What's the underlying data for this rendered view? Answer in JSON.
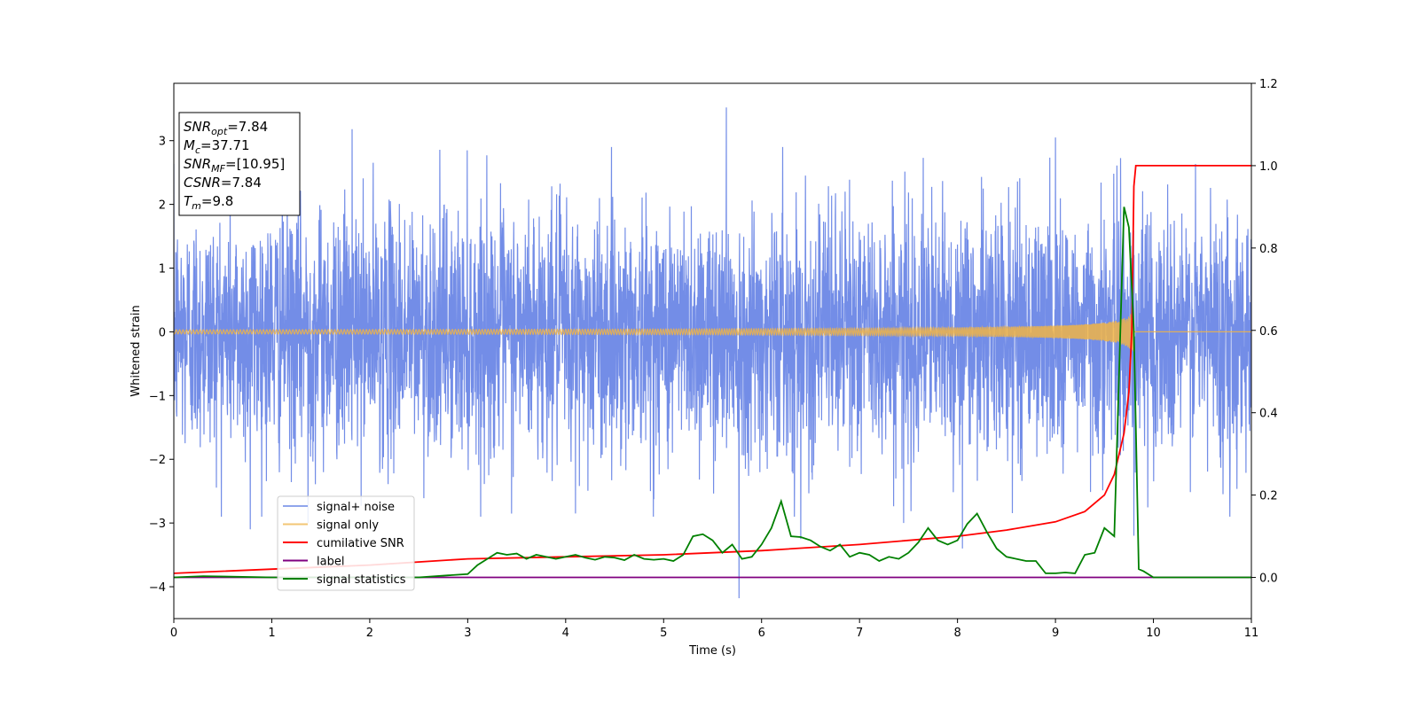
{
  "chart_data": {
    "type": "line",
    "xlabel": "Time (s)",
    "ylabel": "Whitened strain",
    "xlim": [
      0,
      11
    ],
    "ylim_left": [
      -4.5,
      3.9
    ],
    "ylim_right": [
      -0.1,
      1.2
    ],
    "x_ticks": [
      0,
      1,
      2,
      3,
      4,
      5,
      6,
      7,
      8,
      9,
      10,
      11
    ],
    "y_ticks_left": [
      -4,
      -3,
      -2,
      -1,
      0,
      1,
      2,
      3
    ],
    "y_ticks_right": [
      0.0,
      0.2,
      0.4,
      0.6,
      0.8,
      1.0,
      1.2
    ],
    "y_tick_labels_left": [
      "−4",
      "−3",
      "−2",
      "−1",
      "0",
      "1",
      "2",
      "3"
    ],
    "y_tick_labels_right": [
      "0.0",
      "0.2",
      "0.4",
      "0.6",
      "0.8",
      "1.0",
      "1.2"
    ],
    "grid": false,
    "legend_position": "lower-left",
    "series": [
      {
        "name": "signal+ noise",
        "axis": "left",
        "color": "#6b87e6",
        "description_points": "Gaussian noise with std ~0.95; peaks approx.",
        "notable_peaks": [
          [
            0.78,
            -3.1
          ],
          [
            1.37,
            -3.0
          ],
          [
            1.82,
            3.18
          ],
          [
            4.1,
            -2.85
          ],
          [
            5.64,
            3.52
          ],
          [
            5.77,
            -4.18
          ],
          [
            6.4,
            -3.25
          ],
          [
            7.45,
            -3.0
          ],
          [
            8.05,
            -3.4
          ],
          [
            9.0,
            3.05
          ],
          [
            9.8,
            -3.2
          ],
          [
            10.78,
            -2.9
          ]
        ]
      },
      {
        "name": "signal only",
        "axis": "left",
        "color": "#f0b446",
        "chirp": {
          "start": 0,
          "end": 9.8,
          "max_amplitude": 0.35
        }
      },
      {
        "name": "cumilative SNR",
        "axis": "right",
        "color": "#ff0000",
        "x": [
          0,
          1,
          2,
          3,
          4,
          5,
          6,
          7,
          8,
          8.5,
          9,
          9.3,
          9.5,
          9.6,
          9.7,
          9.75,
          9.78,
          9.8,
          9.82,
          11
        ],
        "y": [
          0.01,
          0.02,
          0.03,
          0.045,
          0.05,
          0.055,
          0.065,
          0.08,
          0.1,
          0.115,
          0.135,
          0.16,
          0.2,
          0.25,
          0.35,
          0.45,
          0.6,
          0.95,
          1.0,
          1.0
        ]
      },
      {
        "name": "label",
        "axis": "right",
        "color": "#800080",
        "x": [
          0,
          11
        ],
        "y": [
          0,
          0
        ]
      },
      {
        "name": "signal statistics",
        "axis": "right",
        "color": "#008000",
        "x": [
          0,
          0.3,
          1,
          2,
          2.5,
          2.8,
          3.0,
          3.1,
          3.2,
          3.3,
          3.4,
          3.5,
          3.6,
          3.7,
          3.8,
          3.9,
          4.0,
          4.1,
          4.2,
          4.3,
          4.4,
          4.5,
          4.6,
          4.7,
          4.8,
          4.9,
          5.0,
          5.1,
          5.2,
          5.3,
          5.4,
          5.5,
          5.6,
          5.7,
          5.8,
          5.9,
          6.0,
          6.1,
          6.2,
          6.3,
          6.4,
          6.5,
          6.6,
          6.7,
          6.8,
          6.9,
          7.0,
          7.1,
          7.2,
          7.3,
          7.4,
          7.5,
          7.6,
          7.7,
          7.8,
          7.9,
          8.0,
          8.1,
          8.2,
          8.3,
          8.4,
          8.5,
          8.6,
          8.7,
          8.8,
          8.9,
          9.0,
          9.1,
          9.2,
          9.3,
          9.4,
          9.5,
          9.6,
          9.7,
          9.75,
          9.8,
          9.85,
          9.9,
          10.0,
          10.2,
          11
        ],
        "y": [
          0.0,
          0.003,
          0.0,
          0.0,
          0.0,
          0.005,
          0.008,
          0.03,
          0.045,
          0.06,
          0.055,
          0.058,
          0.045,
          0.055,
          0.05,
          0.045,
          0.05,
          0.055,
          0.048,
          0.043,
          0.05,
          0.048,
          0.042,
          0.055,
          0.045,
          0.043,
          0.045,
          0.04,
          0.055,
          0.1,
          0.105,
          0.09,
          0.06,
          0.08,
          0.045,
          0.05,
          0.08,
          0.12,
          0.185,
          0.1,
          0.098,
          0.09,
          0.075,
          0.065,
          0.08,
          0.05,
          0.06,
          0.055,
          0.04,
          0.05,
          0.045,
          0.06,
          0.085,
          0.12,
          0.09,
          0.08,
          0.09,
          0.13,
          0.155,
          0.11,
          0.07,
          0.05,
          0.045,
          0.04,
          0.04,
          0.01,
          0.01,
          0.012,
          0.01,
          0.055,
          0.06,
          0.12,
          0.1,
          0.9,
          0.85,
          0.6,
          0.02,
          0.015,
          0.0,
          0.0,
          0.0
        ]
      }
    ],
    "legend": [
      {
        "label": "signal+ noise",
        "color": "#6b87e6"
      },
      {
        "label": "signal only",
        "color": "#f0b446"
      },
      {
        "label": "cumilative SNR",
        "color": "#ff0000"
      },
      {
        "label": "label",
        "color": "#800080"
      },
      {
        "label": "signal statistics",
        "color": "#008000"
      }
    ],
    "info_box": {
      "lines": [
        {
          "name": "SNR",
          "sub": "opt",
          "value": "=7.84"
        },
        {
          "name": "M",
          "sub": "c",
          "value": "=37.71"
        },
        {
          "name": "SNR",
          "sub": "MF",
          "value": "=[10.95]"
        },
        {
          "name": "CSNR",
          "sub": "",
          "value": "=7.84"
        },
        {
          "name": "T",
          "sub": "m",
          "value": "=9.8"
        }
      ]
    }
  }
}
